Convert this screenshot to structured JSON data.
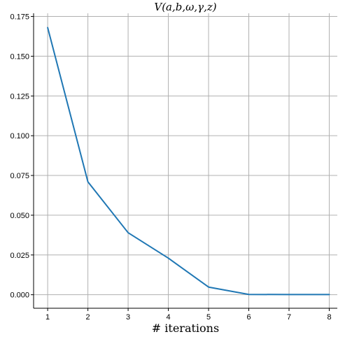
{
  "chart_data": {
    "type": "line",
    "title": "V(a,b,ω,γ,z)",
    "xlabel": "# iterations",
    "ylabel": "",
    "x": [
      1,
      2,
      3,
      4,
      5,
      6,
      7,
      8
    ],
    "series": [
      {
        "values": [
          0.168,
          0.071,
          0.039,
          0.023,
          0.0048,
          0.0002,
          0.0001,
          0.0001
        ],
        "color": "#1f77b4"
      }
    ],
    "xticks": [
      "1",
      "2",
      "3",
      "4",
      "5",
      "6",
      "7",
      "8"
    ],
    "yticks": [
      "0.000",
      "0.025",
      "0.050",
      "0.075",
      "0.100",
      "0.125",
      "0.150",
      "0.175"
    ],
    "xlim": [
      0.65,
      8.2
    ],
    "ylim": [
      -0.0085,
      0.177
    ],
    "grid": true
  }
}
